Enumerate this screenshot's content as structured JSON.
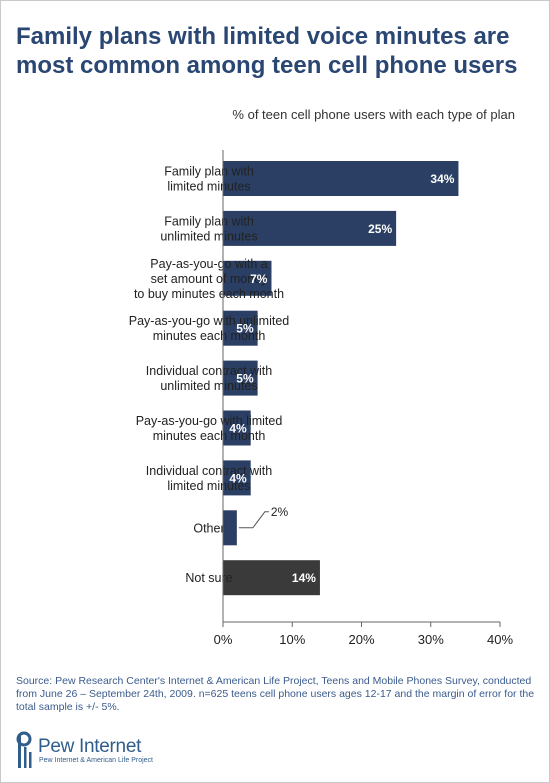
{
  "chart_data": {
    "type": "bar",
    "orientation": "horizontal",
    "title": "Family plans with limited voice minutes are most common among teen cell phone users",
    "subtitle": "% of teen cell phone users with each type of plan",
    "categories": [
      [
        "Family plan with",
        "limited minutes"
      ],
      [
        "Family plan with",
        "unlimited minutes"
      ],
      [
        "Pay-as-you-go with a",
        "set amount of money",
        "to buy minutes each month"
      ],
      [
        "Pay-as-you-go with unlimited",
        "minutes each month"
      ],
      [
        "Individual contract with",
        "unlimited minutes"
      ],
      [
        "Pay-as-you-go with limited",
        "minutes each month"
      ],
      [
        "Individual contract with",
        "limited minutes"
      ],
      [
        "Other"
      ],
      [
        "Not sure"
      ]
    ],
    "values": [
      34,
      25,
      7,
      5,
      5,
      4,
      4,
      2,
      14
    ],
    "value_labels": [
      "34%",
      "25%",
      "7%",
      "5%",
      "5%",
      "4%",
      "4%",
      "2%",
      "14%"
    ],
    "xlim": [
      0,
      40
    ],
    "xticks": [
      0,
      10,
      20,
      30,
      40
    ],
    "xtick_labels": [
      "0%",
      "10%",
      "20%",
      "30%",
      "40%"
    ],
    "grid": false,
    "colors": {
      "bar": "#2a3f63",
      "bar_not_sure": "#3a3a3a",
      "title": "#2a4673",
      "source": "#3a5b8c"
    }
  },
  "source": "Source: Pew Research Center's Internet & American Life Project, Teens and Mobile Phones Survey, conducted from June 26 – September 24th, 2009. n=625 teens cell phone users ages 12-17 and the margin of error for the total sample is +/- 5%.",
  "logo": {
    "name": "Pew Internet",
    "tagline": "Pew Internet & American Life Project"
  }
}
